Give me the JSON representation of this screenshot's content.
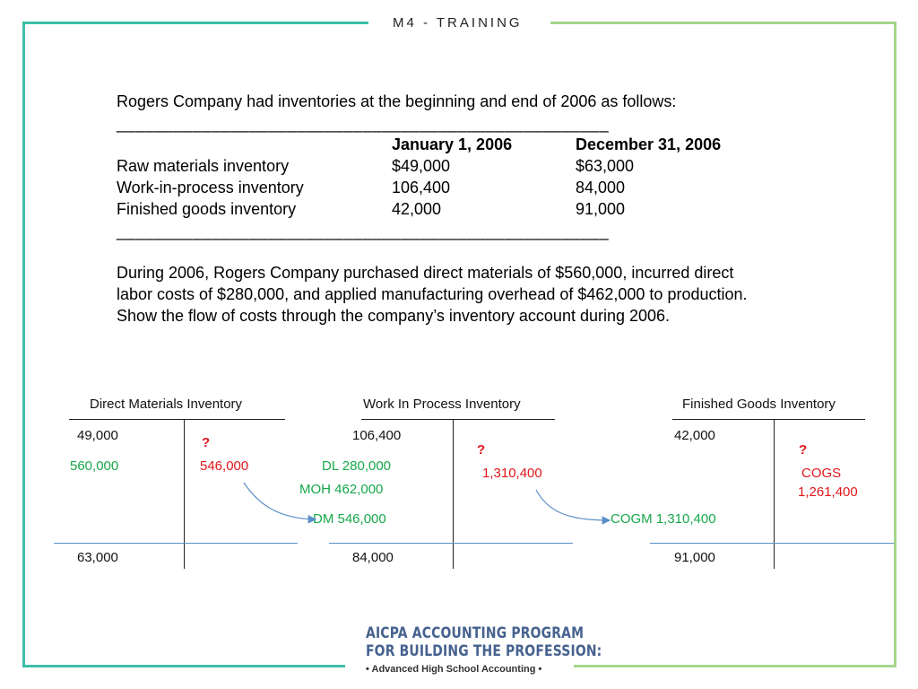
{
  "header": {
    "title": "M4 - TRAINING"
  },
  "problem": {
    "intro": "Rogers Company had inventories at the beginning and end of 2006 as follows:",
    "separator": "____________________________________________________",
    "col_headers": [
      "January 1, 2006",
      "December 31, 2006"
    ],
    "rows": [
      {
        "label": "Raw materials inventory",
        "jan": "$49,000",
        "dec": "$63,000"
      },
      {
        "label": "Work-in-process inventory",
        "jan": "106,400",
        "dec": "84,000"
      },
      {
        "label": "Finished goods inventory",
        "jan": "42,000",
        "dec": "91,000"
      }
    ],
    "paragraph": [
      "During 2006, Rogers Company purchased direct materials of $560,000, incurred direct",
      "labor costs of $280,000, and applied manufacturing overhead of $462,000 to production.",
      "Show the flow of costs through the company’s inventory account during 2006."
    ]
  },
  "t_accounts": {
    "dm": {
      "title": "Direct Materials Inventory",
      "beginning": "49,000",
      "debit": "560,000",
      "question": "?",
      "credit": "546,000",
      "ending": "63,000"
    },
    "wip": {
      "title": "Work In Process Inventory",
      "beginning": "106,400",
      "dl": "DL 280,000",
      "moh": "MOH 462,000",
      "dm": "DM 546,000",
      "question": "?",
      "credit": "1,310,400",
      "ending": "84,000"
    },
    "fg": {
      "title": "Finished Goods Inventory",
      "beginning": "42,000",
      "cogm": "COGM 1,310,400",
      "question": "?",
      "cogs_label": "COGS",
      "cogs_value": "1,261,400",
      "ending": "91,000"
    }
  },
  "logo": {
    "line1": "AICPA ACCOUNTING PROGRAM",
    "line2": "FOR BUILDING THE PROFESSION:",
    "line3": "• Advanced High School Accounting •"
  },
  "colors": {
    "teal": "#3dbfa8",
    "green": "#a6d68a",
    "red": "#e0161a",
    "debit_green": "#16a84a",
    "arrow_blue": "#5b8fc7",
    "logo_blue": "#46628f"
  }
}
